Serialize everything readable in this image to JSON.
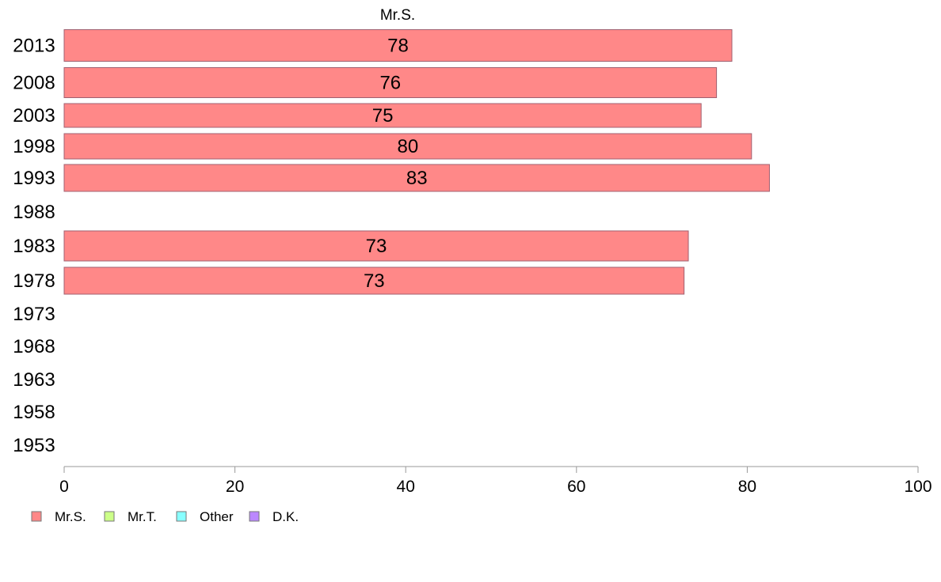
{
  "chart_data": {
    "type": "bar",
    "orientation": "horizontal",
    "title": "Mr.S.",
    "categories": [
      "2013",
      "2008",
      "2003",
      "1998",
      "1993",
      "1988",
      "1983",
      "1978",
      "1973",
      "1968",
      "1963",
      "1958",
      "1953"
    ],
    "series": [
      {
        "name": "Mr.S.",
        "color": "#ff8888",
        "values": [
          78.2,
          76.4,
          74.6,
          80.5,
          82.6,
          null,
          73.1,
          72.6,
          null,
          null,
          null,
          null,
          null
        ],
        "labels": [
          "78",
          "76",
          "75",
          "80",
          "83",
          "",
          "73",
          "73",
          "",
          "",
          "",
          "",
          ""
        ]
      }
    ],
    "xlim": [
      0,
      100
    ],
    "xticks": [
      0,
      20,
      40,
      60,
      80,
      100
    ],
    "xlabel": "",
    "ylabel": "",
    "grid": false,
    "legend": {
      "placement": "bottom-left",
      "entries": [
        {
          "label": "Mr.S.",
          "color": "#ff8888"
        },
        {
          "label": "Mr.T.",
          "color": "#ccff88"
        },
        {
          "label": "Other",
          "color": "#88ffff"
        },
        {
          "label": "D.K.",
          "color": "#bb88ff"
        }
      ]
    }
  }
}
